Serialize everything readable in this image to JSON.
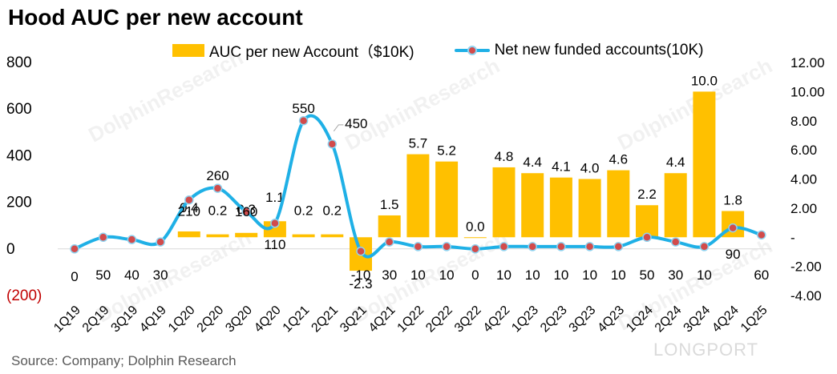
{
  "title": "Hood AUC per new account",
  "source": "Source: Company; Dolphin Research",
  "watermarks": [
    "DolphinResearch",
    "DolphinResearch",
    "DolphinResearch",
    "DolphinResearch",
    "DolphinResearch",
    "DolphinResearch"
  ],
  "logo": "LONGPORT",
  "colors": {
    "bar": "#FFC000",
    "line": "#1FB0E6",
    "marker": "#D24B4B",
    "negative_label": "#C00000"
  },
  "chart_data": {
    "type": "bar+line",
    "title": "Hood AUC per new account",
    "categories": [
      "1Q19",
      "2Q19",
      "3Q19",
      "4Q19",
      "1Q20",
      "2Q20",
      "3Q20",
      "4Q20",
      "1Q21",
      "2Q21",
      "3Q21",
      "4Q21",
      "1Q22",
      "2Q22",
      "3Q22",
      "4Q22",
      "1Q23",
      "2Q23",
      "3Q23",
      "4Q23",
      "1Q24",
      "2Q24",
      "3Q24",
      "4Q24",
      "1Q25"
    ],
    "left_axis": {
      "min": -200,
      "max": 800,
      "ticks": [
        "(200)",
        "0",
        "200",
        "400",
        "600",
        "800"
      ],
      "tick_values": [
        -200,
        0,
        200,
        400,
        600,
        800
      ]
    },
    "right_axis": {
      "min": -4,
      "max": 12,
      "ticks": [
        "-4.00",
        "-2.00",
        "-",
        "2.00",
        "4.00",
        "6.00",
        "8.00",
        "10.00",
        "12.00"
      ],
      "tick_values": [
        -4,
        -2,
        0,
        2,
        4,
        6,
        8,
        10,
        12
      ]
    },
    "series": [
      {
        "name": "AUC per new Account（$10K)",
        "type": "bar",
        "axis": "right",
        "values": [
          null,
          null,
          null,
          null,
          0.4,
          0.2,
          0.3,
          1.1,
          0.2,
          0.2,
          -2.3,
          1.5,
          5.7,
          5.2,
          0.0,
          4.8,
          4.4,
          4.1,
          4.0,
          4.6,
          2.2,
          4.4,
          10.0,
          1.8,
          null
        ],
        "labels": [
          "",
          "",
          "",
          "",
          "0.4",
          "0.2",
          "0.3",
          "1.1",
          "0.2",
          "0.2",
          "-2.3",
          "1.5",
          "5.7",
          "5.2",
          "0.0",
          "4.8",
          "4.4",
          "4.1",
          "4.0",
          "4.6",
          "2.2",
          "4.4",
          "10.0",
          "1.8",
          ""
        ]
      },
      {
        "name": "Net new funded accounts(10K)",
        "type": "line",
        "axis": "left",
        "values": [
          0,
          50,
          40,
          30,
          210,
          260,
          160,
          110,
          550,
          450,
          -10,
          30,
          10,
          10,
          0,
          10,
          10,
          10,
          10,
          10,
          50,
          30,
          10,
          90,
          60
        ],
        "labels": [
          "0",
          "50",
          "40",
          "30",
          "210",
          "260",
          "160",
          "110",
          "550",
          "450",
          "-10",
          "30",
          "10",
          "10",
          "0",
          "10",
          "10",
          "10",
          "10",
          "10",
          "50",
          "30",
          "10",
          "90",
          "60"
        ]
      }
    ]
  }
}
